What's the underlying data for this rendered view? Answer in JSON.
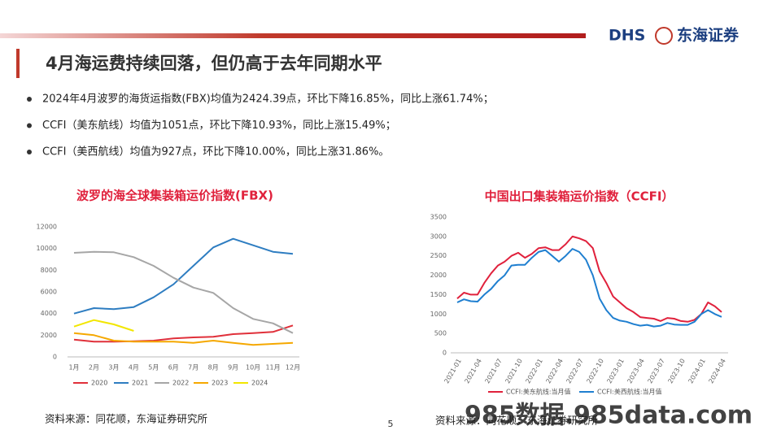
{
  "header": {
    "logo_mark": "DHS",
    "logo_name": "东海证券",
    "title": "4月海运费持续回落，但仍高于去年同期水平"
  },
  "bullets": [
    "2024年4月波罗的海货运指数(FBX)均值为2424.39点，环比下降16.85%，同比上涨61.74%；",
    "CCFI（美东航线）均值为1051点，环比下降10.93%，同比上涨15.49%；",
    "CCFI（美西航线）均值为927点，环比下降10.00%，同比上涨31.86%。"
  ],
  "chart_data": [
    {
      "type": "line",
      "title": "波罗的海全球集装箱运价指数(FBX)",
      "categories": [
        "1月",
        "2月",
        "3月",
        "4月",
        "5月",
        "6月",
        "7月",
        "8月",
        "9月",
        "10月",
        "11月",
        "12月"
      ],
      "series": [
        {
          "name": "2020",
          "color": "#e0303a",
          "values": [
            1600,
            1400,
            1400,
            1450,
            1500,
            1700,
            1800,
            1850,
            2100,
            2200,
            2300,
            2900
          ]
        },
        {
          "name": "2021",
          "color": "#2e7dc1",
          "values": [
            4000,
            4500,
            4400,
            4600,
            5500,
            6700,
            8400,
            10100,
            10900,
            10300,
            9700,
            9500
          ]
        },
        {
          "name": "2022",
          "color": "#a6a6a6",
          "values": [
            9600,
            9700,
            9650,
            9200,
            8400,
            7300,
            6400,
            5900,
            4500,
            3500,
            3100,
            2200
          ]
        },
        {
          "name": "2023",
          "color": "#f5a800",
          "values": [
            2200,
            2000,
            1500,
            1400,
            1400,
            1400,
            1300,
            1500,
            1300,
            1100,
            1200,
            1300
          ]
        },
        {
          "name": "2024",
          "color": "#f2e600",
          "values": [
            2800,
            3400,
            3000,
            2400,
            null,
            null,
            null,
            null,
            null,
            null,
            null,
            null
          ]
        }
      ],
      "ylim": [
        0,
        12000
      ],
      "yticks": [
        0,
        2000,
        4000,
        6000,
        8000,
        10000,
        12000
      ],
      "grid": false,
      "source": "资料来源：同花顺，东海证券研究所"
    },
    {
      "type": "line",
      "title": "中国出口集装箱运价指数（CCFI）",
      "categories": [
        "2021-01",
        null,
        null,
        "2021-04",
        null,
        null,
        "2021-07",
        null,
        null,
        "2021-10",
        null,
        null,
        "2022-01",
        null,
        null,
        "2022-04",
        null,
        null,
        "2022-07",
        null,
        null,
        "2022-10",
        null,
        null,
        "2023-01",
        null,
        null,
        "2023-04",
        null,
        null,
        "2023-07",
        null,
        null,
        "2023-10",
        null,
        null,
        "2024-01",
        null,
        null,
        "2024-04"
      ],
      "series": [
        {
          "name": "CCFI:美东航线:当月值",
          "color": "#e0213c",
          "values": [
            1400,
            1550,
            1500,
            1500,
            1800,
            2050,
            2250,
            2350,
            2500,
            2580,
            2450,
            2550,
            2700,
            2720,
            2650,
            2650,
            2800,
            3000,
            2950,
            2880,
            2700,
            2100,
            1800,
            1450,
            1300,
            1150,
            1050,
            920,
            900,
            880,
            820,
            900,
            880,
            820,
            800,
            850,
            1000,
            1300,
            1200,
            1051
          ]
        },
        {
          "name": "CCFI:美西航线:当月值",
          "color": "#1f7fd0",
          "values": [
            1300,
            1380,
            1330,
            1320,
            1500,
            1650,
            1850,
            2000,
            2250,
            2270,
            2270,
            2450,
            2600,
            2650,
            2500,
            2350,
            2500,
            2680,
            2600,
            2400,
            2000,
            1400,
            1100,
            900,
            830,
            800,
            740,
            700,
            720,
            680,
            700,
            770,
            730,
            720,
            720,
            800,
            1000,
            1100,
            1000,
            927
          ]
        }
      ],
      "ylim": [
        0,
        3500
      ],
      "yticks": [
        0,
        500,
        1000,
        1500,
        2000,
        2500,
        3000,
        3500
      ],
      "grid": false,
      "source": "资料来源：同花顺，东海证券研究所"
    }
  ],
  "page_number": "5",
  "watermark": "985数据.985data.com"
}
